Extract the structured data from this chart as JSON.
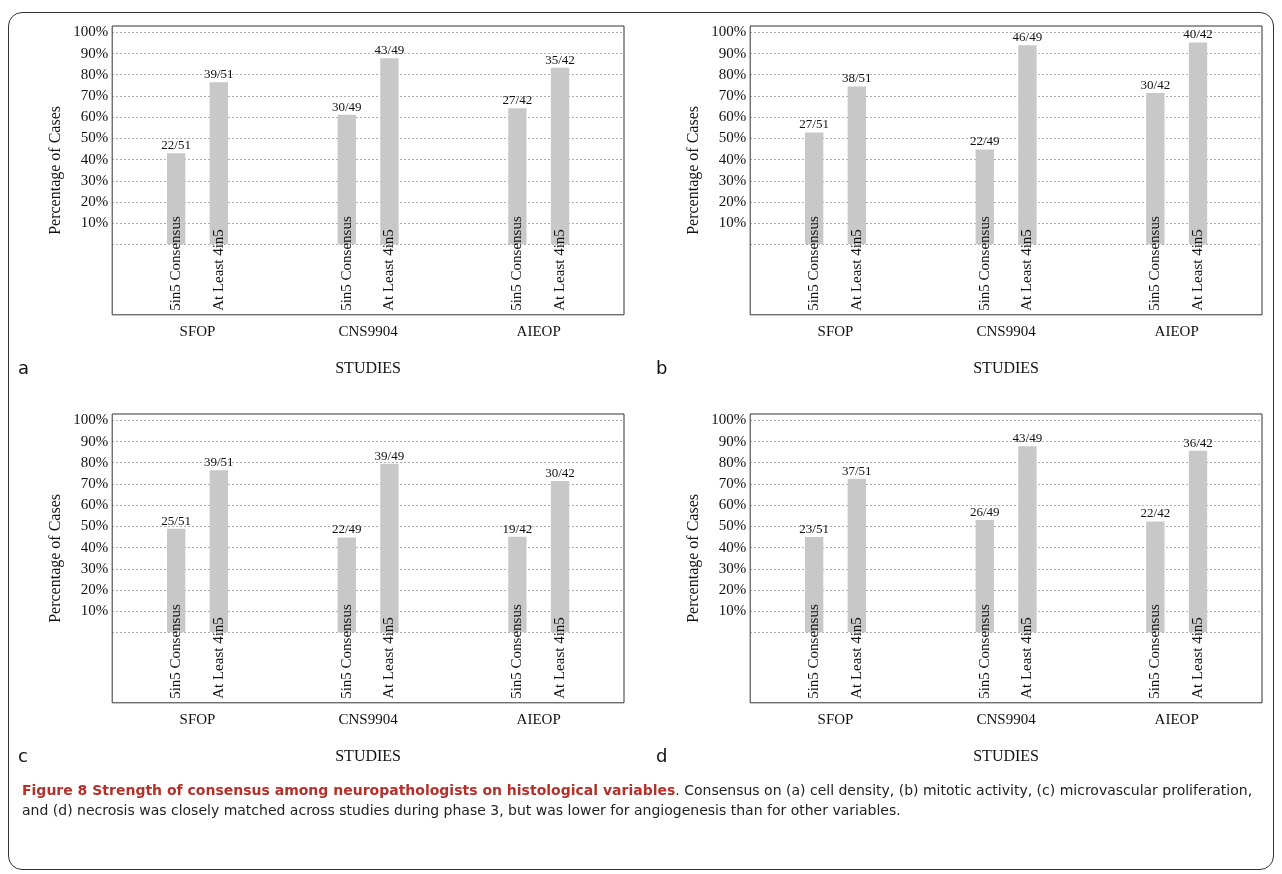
{
  "chart_data": [
    {
      "type": "bar",
      "categories": [
        "SFOP",
        "CNS9904",
        "AIEOP"
      ],
      "xlabel": "STUDIES",
      "ylabel": "Percentage of Cases",
      "ylim": [
        -33,
        103
      ],
      "yticks": [
        {
          "value": 0,
          "label": null
        },
        {
          "value": 10,
          "label": "10%"
        },
        {
          "value": 20,
          "label": "20%"
        },
        {
          "value": 30,
          "label": "30%"
        },
        {
          "value": 40,
          "label": "40%"
        },
        {
          "value": 50,
          "label": "50%"
        },
        {
          "value": 60,
          "label": "60%"
        },
        {
          "value": 70,
          "label": "70%"
        },
        {
          "value": 80,
          "label": "80%"
        },
        {
          "value": 90,
          "label": "90%"
        },
        {
          "value": 100,
          "label": "100%"
        }
      ],
      "grid": "y",
      "annotations": [
        "a"
      ],
      "series": [
        {
          "name": "5in5 Consensus",
          "color": "#c8c8c8",
          "values": [
            43.1,
            61.2,
            64.3
          ],
          "value_labels": [
            "22/51",
            "30/49",
            "27/42"
          ]
        },
        {
          "name": "At Least 4in5",
          "color": "#c8c8c8",
          "values": [
            76.5,
            87.8,
            83.3
          ],
          "value_labels": [
            "39/51",
            "43/49",
            "35/42"
          ]
        }
      ]
    },
    {
      "type": "bar",
      "categories": [
        "SFOP",
        "CNS9904",
        "AIEOP"
      ],
      "xlabel": "STUDIES",
      "ylabel": "Percentage of Cases",
      "ylim": [
        -33,
        103
      ],
      "yticks": [
        {
          "value": 0,
          "label": null
        },
        {
          "value": 10,
          "label": "10%"
        },
        {
          "value": 20,
          "label": "20%"
        },
        {
          "value": 30,
          "label": "30%"
        },
        {
          "value": 40,
          "label": "40%"
        },
        {
          "value": 50,
          "label": "50%"
        },
        {
          "value": 60,
          "label": "60%"
        },
        {
          "value": 70,
          "label": "70%"
        },
        {
          "value": 80,
          "label": "80%"
        },
        {
          "value": 90,
          "label": "90%"
        },
        {
          "value": 100,
          "label": "100%"
        }
      ],
      "grid": "y",
      "annotations": [
        "b"
      ],
      "series": [
        {
          "name": "5in5 Consensus",
          "color": "#c8c8c8",
          "values": [
            52.9,
            44.9,
            71.4
          ],
          "value_labels": [
            "27/51",
            "22/49",
            "30/42"
          ]
        },
        {
          "name": "At Least 4in5",
          "color": "#c8c8c8",
          "values": [
            74.5,
            93.9,
            95.2
          ],
          "value_labels": [
            "38/51",
            "46/49",
            "40/42"
          ]
        }
      ]
    },
    {
      "type": "bar",
      "categories": [
        "SFOP",
        "CNS9904",
        "AIEOP"
      ],
      "xlabel": "STUDIES",
      "ylabel": "Percentage of Cases",
      "ylim": [
        -33,
        103
      ],
      "yticks": [
        {
          "value": 0,
          "label": null
        },
        {
          "value": 10,
          "label": "10%"
        },
        {
          "value": 20,
          "label": "20%"
        },
        {
          "value": 30,
          "label": "30%"
        },
        {
          "value": 40,
          "label": "40%"
        },
        {
          "value": 50,
          "label": "50%"
        },
        {
          "value": 60,
          "label": "60%"
        },
        {
          "value": 70,
          "label": "70%"
        },
        {
          "value": 80,
          "label": "80%"
        },
        {
          "value": 90,
          "label": "90%"
        },
        {
          "value": 100,
          "label": "100%"
        }
      ],
      "grid": "y",
      "annotations": [
        "c"
      ],
      "series": [
        {
          "name": "5in5 Consensus",
          "color": "#c8c8c8",
          "values": [
            49.0,
            44.9,
            45.2
          ],
          "value_labels": [
            "25/51",
            "22/49",
            "19/42"
          ]
        },
        {
          "name": "At Least 4in5",
          "color": "#c8c8c8",
          "values": [
            76.5,
            79.6,
            71.4
          ],
          "value_labels": [
            "39/51",
            "39/49",
            "30/42"
          ]
        }
      ]
    },
    {
      "type": "bar",
      "categories": [
        "SFOP",
        "CNS9904",
        "AIEOP"
      ],
      "xlabel": "STUDIES",
      "ylabel": "Percentage of Cases",
      "ylim": [
        -33,
        103
      ],
      "yticks": [
        {
          "value": 0,
          "label": null
        },
        {
          "value": 10,
          "label": "10%"
        },
        {
          "value": 20,
          "label": "20%"
        },
        {
          "value": 30,
          "label": "30%"
        },
        {
          "value": 40,
          "label": "40%"
        },
        {
          "value": 50,
          "label": "50%"
        },
        {
          "value": 60,
          "label": "60%"
        },
        {
          "value": 70,
          "label": "70%"
        },
        {
          "value": 80,
          "label": "80%"
        },
        {
          "value": 90,
          "label": "90%"
        },
        {
          "value": 100,
          "label": "100%"
        }
      ],
      "grid": "y",
      "annotations": [
        "d"
      ],
      "series": [
        {
          "name": "5in5 Consensus",
          "color": "#c8c8c8",
          "values": [
            45.1,
            53.1,
            52.4
          ],
          "value_labels": [
            "23/51",
            "26/49",
            "22/42"
          ]
        },
        {
          "name": "At Least 4in5",
          "color": "#c8c8c8",
          "values": [
            72.5,
            87.8,
            85.7
          ],
          "value_labels": [
            "37/51",
            "43/49",
            "36/42"
          ]
        }
      ]
    },
    {
      "type": "other",
      "title": "Figure 8 Strength of consensus among neuropathologists on histological variables",
      "annotations": [
        ". Consensus on (a) cell density, (b) mitotic activity, (c) microvascular proliferation, and (d) necrosis was closely matched across studies during phase 3, but was lower for angiogenesis than for other variables."
      ]
    }
  ]
}
